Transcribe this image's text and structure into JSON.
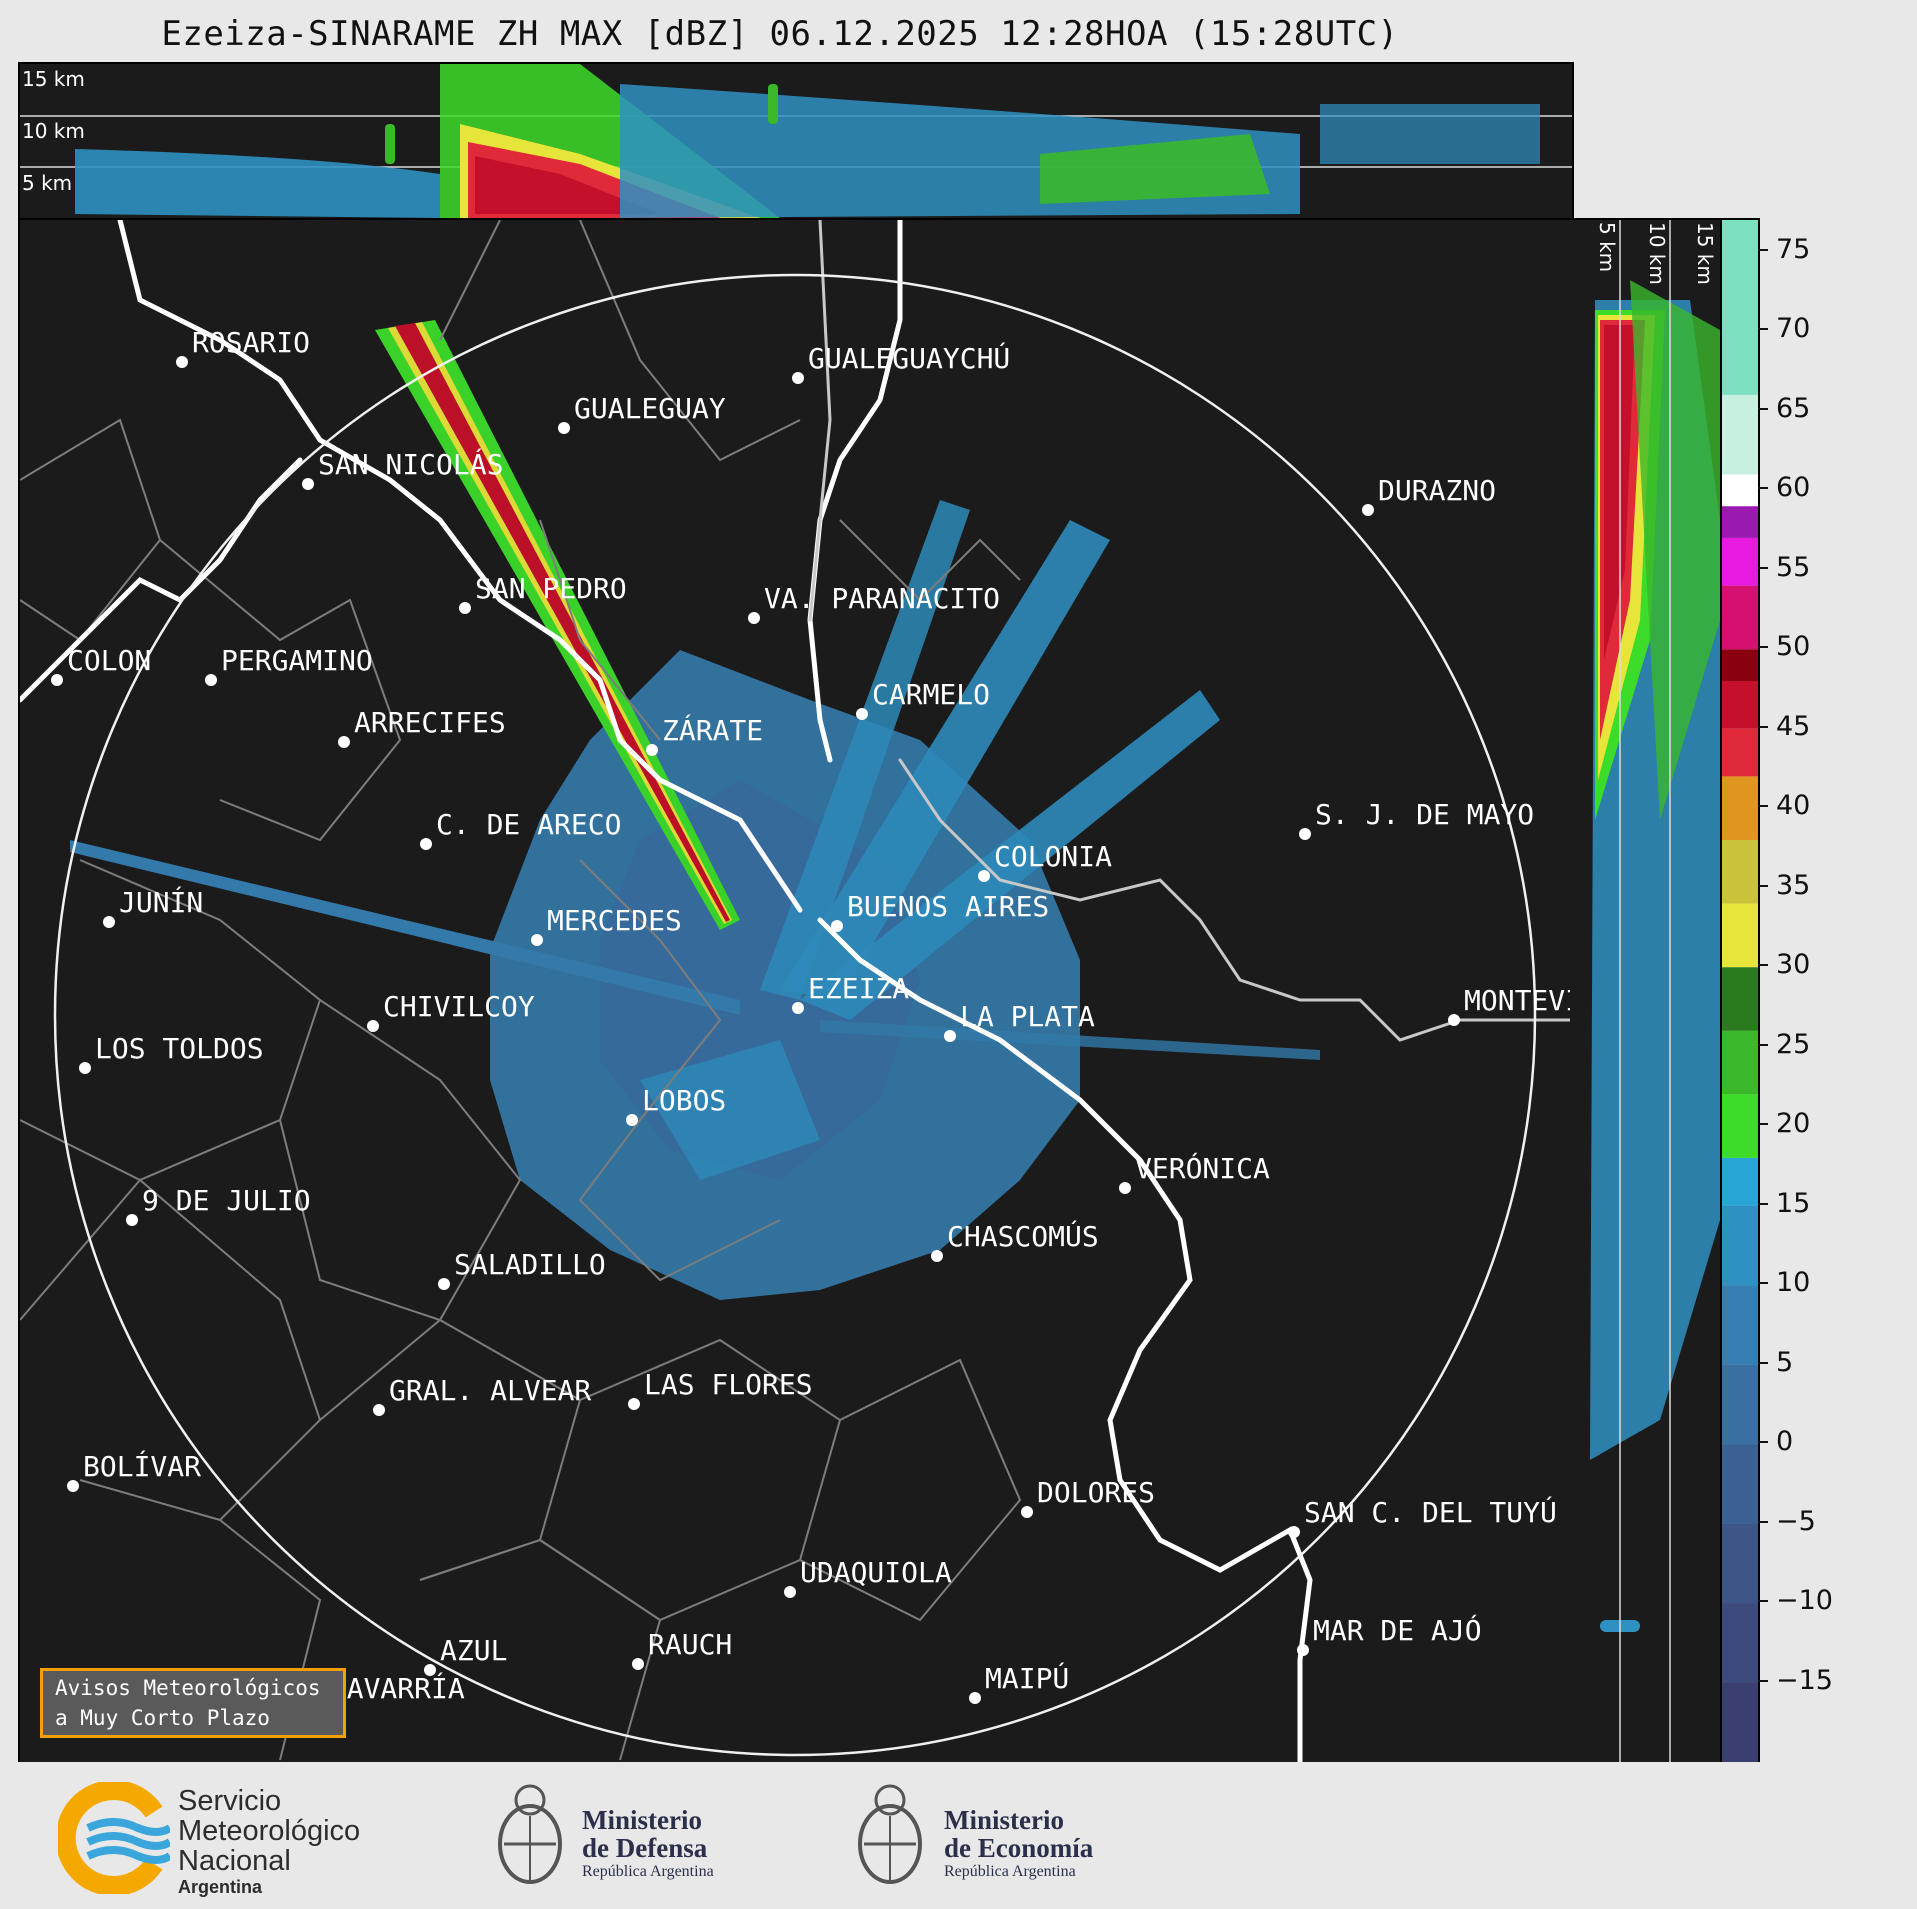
{
  "title": "Ezeiza-SINARAME ZH MAX [dBZ] 06.12.2025 12:28HOA (15:28UTC)",
  "top_altitude_labels": [
    "15 km",
    "10 km",
    "5 km"
  ],
  "side_altitude_labels": [
    "5 km",
    "10 km",
    "15 km"
  ],
  "cities": [
    {
      "name": "ROSARIO"
    },
    {
      "name": "GUALEGUAYCHÚ"
    },
    {
      "name": "GUALEGUAY"
    },
    {
      "name": "SAN NICOLÁS"
    },
    {
      "name": "DURAZNO"
    },
    {
      "name": "SAN PEDRO"
    },
    {
      "name": "VA. PARANACITO"
    },
    {
      "name": "COLON"
    },
    {
      "name": "PERGAMINO"
    },
    {
      "name": "CARMELO"
    },
    {
      "name": "ARRECIFES"
    },
    {
      "name": "ZÁRATE"
    },
    {
      "name": "S. J. DE MAYO"
    },
    {
      "name": "C. DE ARECO"
    },
    {
      "name": "COLONIA"
    },
    {
      "name": "JUNÍN"
    },
    {
      "name": "BUENOS AIRES"
    },
    {
      "name": "MERCEDES"
    },
    {
      "name": "MONTEVIDEO"
    },
    {
      "name": "EZEIZA"
    },
    {
      "name": "CHIVILCOY"
    },
    {
      "name": "LA PLATA"
    },
    {
      "name": "LOS TOLDOS"
    },
    {
      "name": "LOBOS"
    },
    {
      "name": "VERÓNICA"
    },
    {
      "name": "9 DE JULIO"
    },
    {
      "name": "CHASCOMÚS"
    },
    {
      "name": "SALADILLO"
    },
    {
      "name": "GRAL. ALVEAR"
    },
    {
      "name": "LAS FLORES"
    },
    {
      "name": "BOLÍVAR"
    },
    {
      "name": "DOLORES"
    },
    {
      "name": "SAN C. DEL TUYÚ"
    },
    {
      "name": "UDAQUIOLA"
    },
    {
      "name": "MAR DE AJÓ"
    },
    {
      "name": "AZUL"
    },
    {
      "name": "RAUCH"
    },
    {
      "name": "OLAVARRÍA"
    },
    {
      "name": "MAIPÚ"
    }
  ],
  "colorbar": {
    "label": "dBZ",
    "min": -20,
    "max": 77,
    "ticks": [
      "75",
      "70",
      "65",
      "60",
      "55",
      "50",
      "45",
      "40",
      "35",
      "30",
      "25",
      "20",
      "15",
      "10",
      "5",
      "0",
      "−5",
      "−10",
      "−15"
    ],
    "stops": [
      {
        "from": -20,
        "to": -15,
        "color": "#3a3f70"
      },
      {
        "from": -15,
        "to": -10,
        "color": "#3d4a7c"
      },
      {
        "from": -10,
        "to": -5,
        "color": "#3e5588"
      },
      {
        "from": -5,
        "to": 0,
        "color": "#3b6194"
      },
      {
        "from": 0,
        "to": 5,
        "color": "#3a6fa2"
      },
      {
        "from": 5,
        "to": 10,
        "color": "#357fb2"
      },
      {
        "from": 10,
        "to": 15,
        "color": "#2f90c2"
      },
      {
        "from": 15,
        "to": 18,
        "color": "#28a6d6"
      },
      {
        "from": 18,
        "to": 22,
        "color": "#3ddc2a"
      },
      {
        "from": 22,
        "to": 26,
        "color": "#3ab82a"
      },
      {
        "from": 26,
        "to": 30,
        "color": "#2a7a1e"
      },
      {
        "from": 30,
        "to": 34,
        "color": "#e8e53a"
      },
      {
        "from": 34,
        "to": 38,
        "color": "#c9c23a"
      },
      {
        "from": 38,
        "to": 42,
        "color": "#e0951e"
      },
      {
        "from": 42,
        "to": 45,
        "color": "#e02a3a"
      },
      {
        "from": 45,
        "to": 48,
        "color": "#c4102a"
      },
      {
        "from": 48,
        "to": 50,
        "color": "#8a0010"
      },
      {
        "from": 50,
        "to": 54,
        "color": "#d61070"
      },
      {
        "from": 54,
        "to": 57,
        "color": "#e81ae0"
      },
      {
        "from": 57,
        "to": 59,
        "color": "#9a1ab0"
      },
      {
        "from": 59,
        "to": 61,
        "color": "#ffffff"
      },
      {
        "from": 61,
        "to": 66,
        "color": "#c8f0e0"
      },
      {
        "from": 66,
        "to": 77,
        "color": "#7ce0c0"
      }
    ]
  },
  "notice": {
    "line1": "Avisos Meteorológicos",
    "line2": "a Muy Corto Plazo"
  },
  "footer": {
    "smn": {
      "line1": "Servicio",
      "line2": "Meteorológico",
      "line3": "Nacional",
      "country": "Argentina"
    },
    "defensa": {
      "line1": "Ministerio",
      "line2": "de Defensa",
      "sub": "República Argentina"
    },
    "economia": {
      "line1": "Ministerio",
      "line2": "de Economía",
      "sub": "República Argentina"
    }
  },
  "colors": {
    "panel_bg": "#1b1b1b",
    "notice_border": "#f5a000",
    "smn_yellow": "#f5a800",
    "smn_blue": "#3aa6dc"
  }
}
